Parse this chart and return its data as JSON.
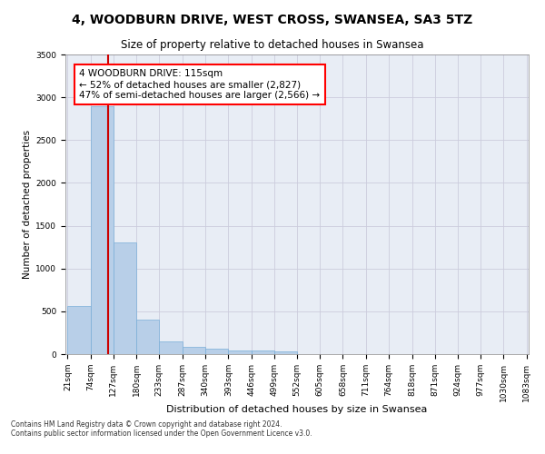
{
  "title1": "4, WOODBURN DRIVE, WEST CROSS, SWANSEA, SA3 5TZ",
  "title2": "Size of property relative to detached houses in Swansea",
  "xlabel": "Distribution of detached houses by size in Swansea",
  "ylabel": "Number of detached properties",
  "footnote1": "Contains HM Land Registry data © Crown copyright and database right 2024.",
  "footnote2": "Contains public sector information licensed under the Open Government Licence v3.0.",
  "bin_edges": [
    21,
    74,
    127,
    180,
    233,
    287,
    340,
    393,
    446,
    499,
    552,
    605,
    658,
    711,
    764,
    818,
    871,
    924,
    977,
    1030,
    1083
  ],
  "bar_heights": [
    560,
    2900,
    1300,
    400,
    150,
    80,
    60,
    45,
    40,
    35,
    5,
    2,
    1,
    0,
    0,
    0,
    0,
    0,
    0,
    0
  ],
  "bar_color": "#b8cfe8",
  "bar_edgecolor": "#7aaed8",
  "vline_x": 115,
  "vline_color": "#cc0000",
  "annotation_text": "4 WOODBURN DRIVE: 115sqm\n← 52% of detached houses are smaller (2,827)\n47% of semi-detached houses are larger (2,566) →",
  "ylim_max": 3500,
  "yticks": [
    0,
    500,
    1000,
    1500,
    2000,
    2500,
    3000,
    3500
  ],
  "grid_color": "#ccccdd",
  "bg_color": "#e8edf5",
  "title1_fontsize": 10,
  "title2_fontsize": 8.5,
  "xlabel_fontsize": 8,
  "ylabel_fontsize": 7.5,
  "tick_fontsize": 6.5,
  "annotation_fontsize": 7.5,
  "footnote_fontsize": 5.5
}
